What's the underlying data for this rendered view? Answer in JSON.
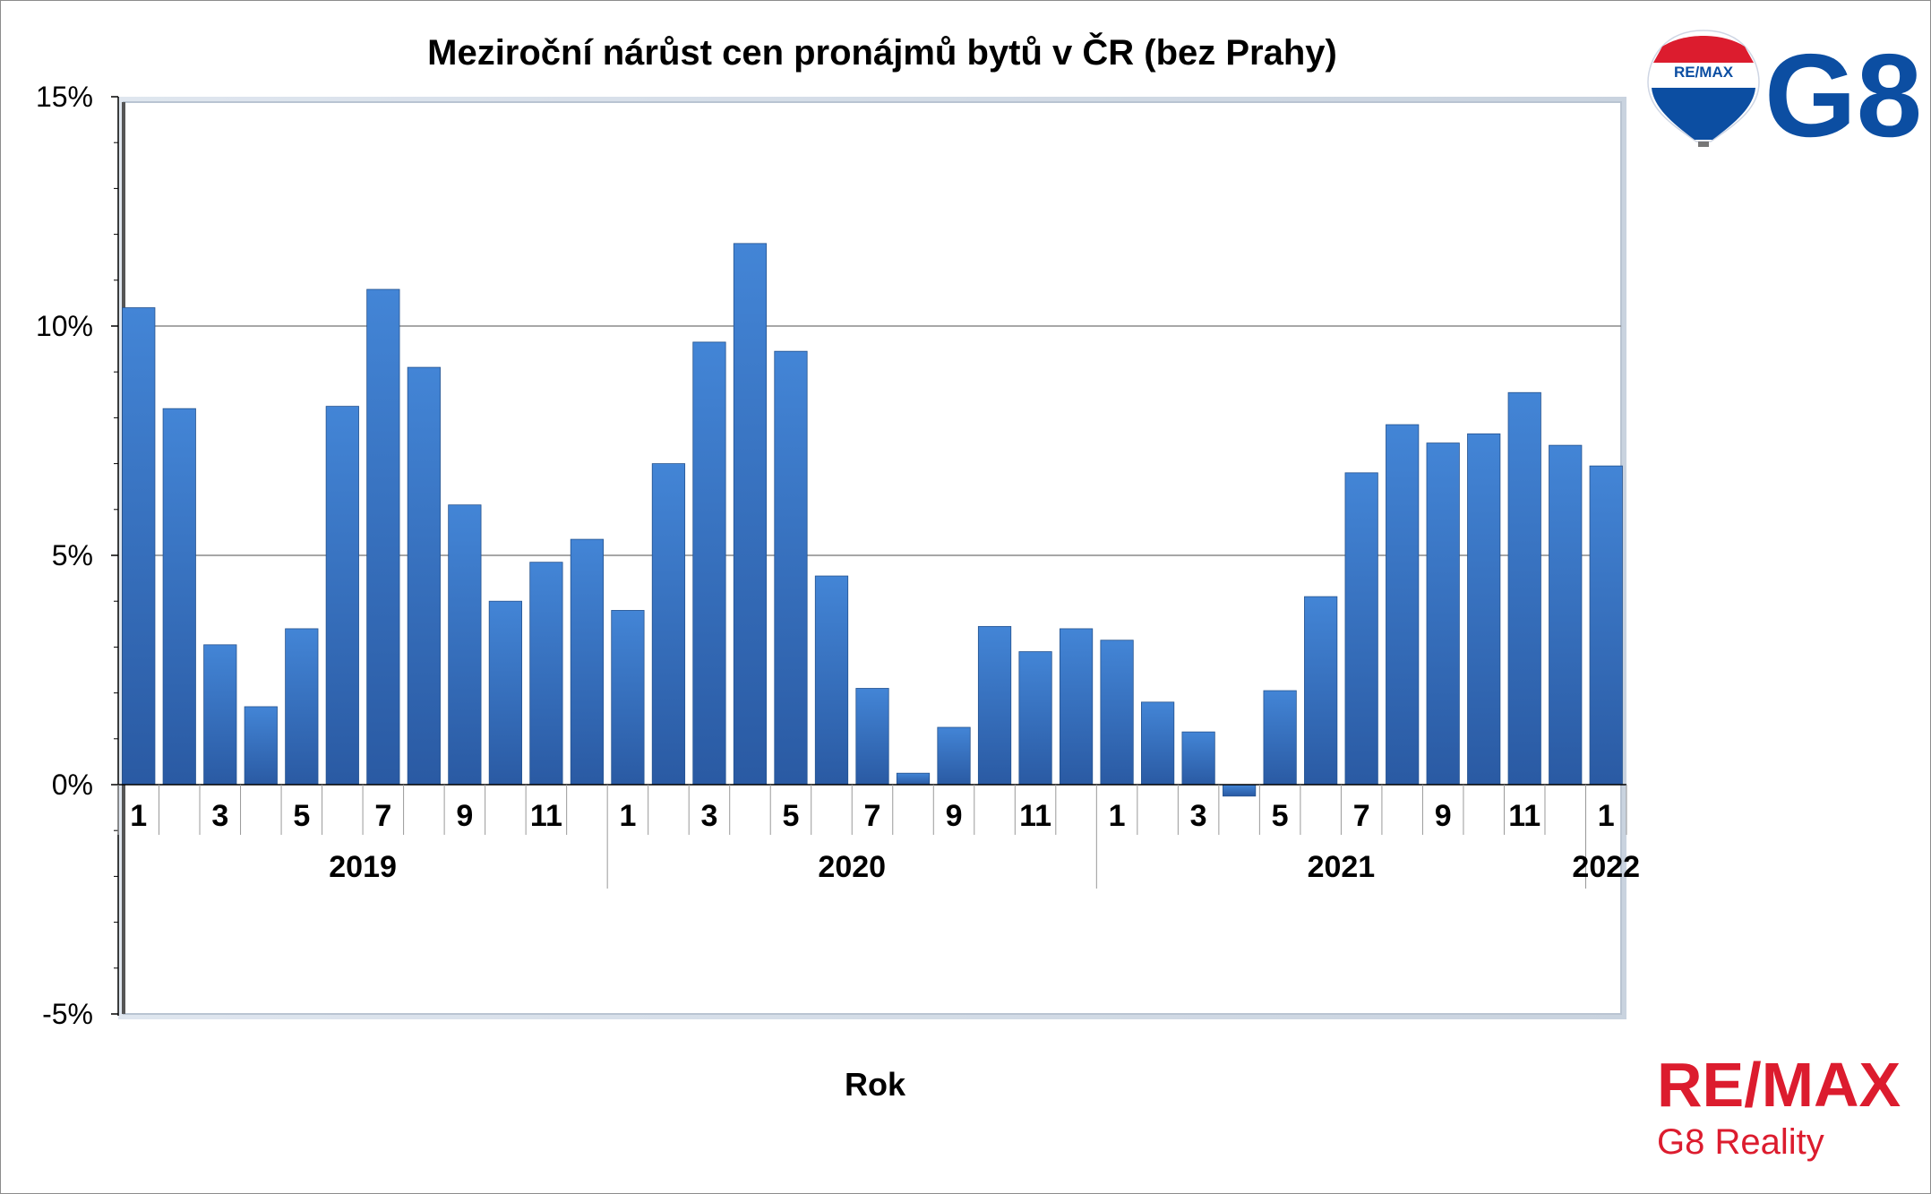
{
  "chart_data": {
    "type": "bar",
    "title": "Meziroční nárůst cen pronájmů bytů v ČR (bez Prahy)",
    "xlabel": "Rok",
    "ylabel": "",
    "ylim": [
      -5,
      15
    ],
    "yticks": [
      -5,
      0,
      5,
      10,
      15
    ],
    "ytick_labels": [
      "-5%",
      "0%",
      "5%",
      "10%",
      "15%"
    ],
    "grid": true,
    "groups": [
      {
        "label": "2019",
        "months": 12
      },
      {
        "label": "2020",
        "months": 12
      },
      {
        "label": "2021",
        "months": 12
      },
      {
        "label": "2022",
        "months": 1
      }
    ],
    "categories": [
      "1",
      "2",
      "3",
      "4",
      "5",
      "6",
      "7",
      "8",
      "9",
      "10",
      "11",
      "12",
      "1",
      "2",
      "3",
      "4",
      "5",
      "6",
      "7",
      "8",
      "9",
      "10",
      "11",
      "12",
      "1",
      "2",
      "3",
      "4",
      "5",
      "6",
      "7",
      "8",
      "9",
      "10",
      "11",
      "12",
      "1"
    ],
    "visible_tick_labels": [
      "1",
      "",
      "3",
      "",
      "5",
      "",
      "7",
      "",
      "9",
      "",
      "11",
      "",
      "1",
      "",
      "3",
      "",
      "5",
      "",
      "7",
      "",
      "9",
      "",
      "11",
      "",
      "1",
      "",
      "3",
      "",
      "5",
      "",
      "7",
      "",
      "9",
      "",
      "11",
      "",
      "1"
    ],
    "values": [
      10.4,
      8.2,
      3.05,
      1.7,
      3.4,
      8.25,
      10.8,
      9.1,
      6.1,
      4.0,
      4.85,
      5.35,
      3.8,
      7.0,
      9.65,
      11.8,
      9.45,
      4.55,
      2.1,
      0.25,
      1.25,
      3.45,
      2.9,
      3.4,
      3.15,
      1.8,
      1.15,
      -0.25,
      2.05,
      4.1,
      6.8,
      7.85,
      7.45,
      7.65,
      8.55,
      7.4,
      6.95
    ],
    "colors": {
      "bar_top": "#3f7fd1",
      "bar_bottom": "#2b5ea8",
      "grid": "#808080",
      "background": "#ffffff"
    }
  },
  "branding": {
    "balloon_text": "RE/MAX",
    "g8_text": "G8",
    "remax_text": "RE/MAX",
    "reality_text": "G8 Reality",
    "colors": {
      "red": "#dc1c2e",
      "blue": "#0c4ea2"
    }
  }
}
